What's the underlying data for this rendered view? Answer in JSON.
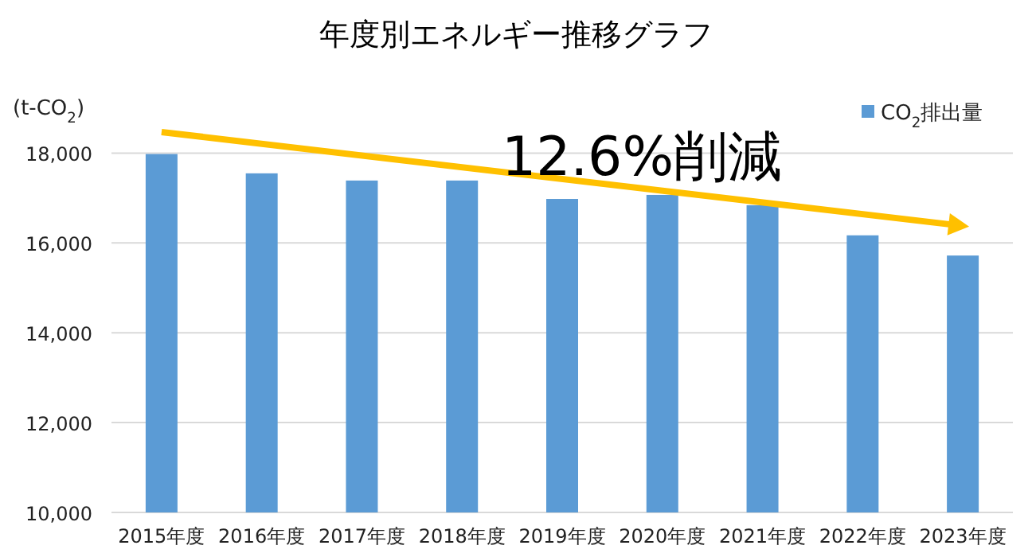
{
  "chart_data": {
    "type": "bar",
    "title": "年度別エネルギー推移グラフ",
    "ylabel": "(t-CO$_{2}$)",
    "categories": [
      "2015年度",
      "2016年度",
      "2017年度",
      "2018年度",
      "2019年度",
      "2020年度",
      "2021年度",
      "2022年度",
      "2023年度"
    ],
    "series": [
      {
        "name": "CO$_{2}$排出量",
        "color": "#5b9bd5",
        "values": [
          17980,
          17550,
          17390,
          17390,
          16980,
          17070,
          16840,
          16170,
          15720
        ]
      },
      {
        "type": "line",
        "color": "#ffc000",
        "x": [
          "2015年度",
          "2023年度"
        ],
        "values": [
          18470,
          16380
        ]
      }
    ],
    "annotations": [
      "12.6%削減"
    ],
    "ylim": [
      10000,
      19000
    ],
    "yticks": [
      {
        "value": 10000,
        "label": "10,000"
      },
      {
        "value": 12000,
        "label": "12,000"
      },
      {
        "value": 14000,
        "label": "14,000"
      },
      {
        "value": 16000,
        "label": "16,000"
      },
      {
        "value": 18000,
        "label": "18,000"
      }
    ],
    "grid": "y",
    "legend": "top right"
  }
}
